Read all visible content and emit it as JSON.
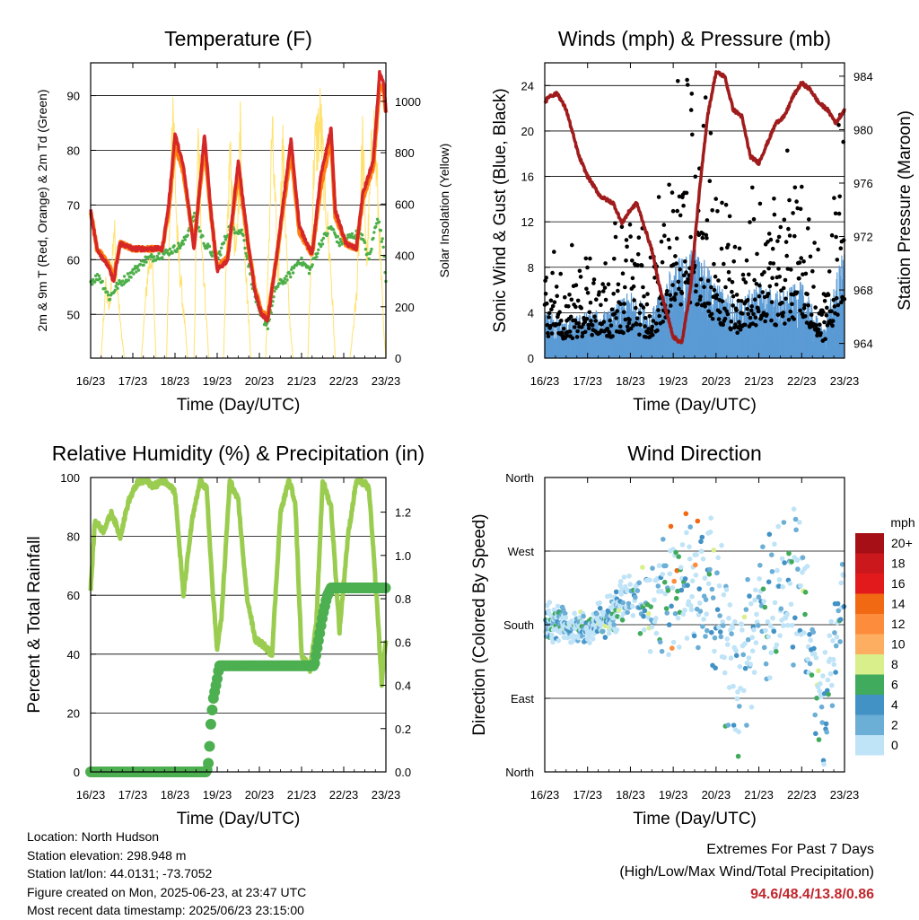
{
  "info": {
    "location": "Location: North Hudson",
    "elevation": "Station elevation: 298.948 m",
    "latlon": "Station lat/lon: 44.0131; -73.7052",
    "created": "Figure created on Mon, 2025-06-23, at 23:47 UTC",
    "recent": "Most recent data timestamp: 2025/06/23 23:15:00"
  },
  "extremes": {
    "title": "Extremes For Past 7 Days",
    "subtitle": "(High/Low/Max Wind/Total Precipitation)",
    "values": "94.6/48.4/13.8/0.86"
  },
  "colors": {
    "temp2m": "#d62728",
    "temp9m": "#ff7f0e",
    "dewpoint": "#4daf4a",
    "solar": "#ffe066",
    "wind": "#5b9bd5",
    "gust": "#000000",
    "pressure": "#a01c1c",
    "rh": "#9acd4f",
    "precip": "#4caf50"
  },
  "chart_data": [
    {
      "id": "temperature",
      "type": "line",
      "title": "Temperature (F)",
      "xlabel": "Time (Day/UTC)",
      "ylabel": "2m & 9m T (Red, Orange) & 2m Td (Green)",
      "ylabel_right": "Solar Insolation (Yellow)",
      "x_ticks": [
        "16/23",
        "17/23",
        "18/23",
        "19/23",
        "20/23",
        "21/23",
        "22/23",
        "23/23"
      ],
      "xlim": [
        0,
        7
      ],
      "ylim": [
        42,
        96
      ],
      "y_ticks": [
        50,
        60,
        70,
        80,
        90
      ],
      "ylim_right": [
        0,
        1150
      ],
      "y_ticks_right": [
        0,
        200,
        400,
        600,
        800,
        1000
      ],
      "grid": true,
      "series": [
        {
          "key": "t2m",
          "x": [
            0,
            0.15,
            0.4,
            0.55,
            0.7,
            1.0,
            1.4,
            1.7,
            1.85,
            2.0,
            2.2,
            2.45,
            2.7,
            2.85,
            3.0,
            3.25,
            3.5,
            3.75,
            3.9,
            4.05,
            4.2,
            4.4,
            4.75,
            4.95,
            5.25,
            5.45,
            5.7,
            5.8,
            6.05,
            6.3,
            6.45,
            6.7,
            6.85,
            6.95,
            7.0
          ],
          "y": [
            69,
            62,
            59,
            56,
            63,
            62,
            62,
            62,
            70,
            83,
            77,
            62,
            83,
            69,
            58,
            60,
            78,
            62,
            54,
            50,
            49,
            60,
            82,
            66,
            61,
            75,
            84,
            69,
            63,
            62,
            72,
            78,
            94,
            92,
            87
          ]
        },
        {
          "key": "t9m",
          "x": [
            0,
            0.15,
            0.4,
            0.55,
            0.7,
            1.0,
            1.4,
            1.7,
            1.85,
            2.0,
            2.2,
            2.45,
            2.7,
            2.85,
            3.0,
            3.25,
            3.5,
            3.75,
            3.9,
            4.05,
            4.2,
            4.4,
            4.75,
            4.95,
            5.25,
            5.45,
            5.7,
            5.8,
            6.05,
            6.3,
            6.45,
            6.7,
            6.85,
            6.95,
            7.0
          ],
          "y": [
            69,
            62,
            59.5,
            57,
            63,
            62,
            62,
            62,
            69,
            81,
            76,
            62.5,
            81,
            68.5,
            58.5,
            60.5,
            76,
            62,
            54.5,
            50.5,
            49.5,
            60,
            80,
            65,
            61,
            73,
            82,
            68,
            63,
            62,
            71,
            77,
            92,
            91,
            87
          ]
        },
        {
          "key": "td",
          "x": [
            0,
            0.2,
            0.45,
            0.6,
            0.9,
            1.3,
            1.7,
            2.0,
            2.2,
            2.45,
            2.7,
            3.0,
            3.3,
            3.6,
            3.85,
            4.0,
            4.2,
            4.4,
            4.7,
            4.95,
            5.2,
            5.45,
            5.7,
            5.9,
            6.1,
            6.4,
            6.6,
            6.8,
            6.95,
            7.0
          ],
          "y": [
            56,
            57,
            53,
            55,
            57,
            60,
            61,
            62,
            63,
            68,
            63,
            60,
            66,
            65,
            55,
            50,
            48,
            55,
            57,
            60,
            58,
            63,
            66,
            63,
            64,
            65,
            60,
            68,
            62,
            56
          ]
        },
        {
          "key": "solar",
          "axis": "right",
          "x": [
            0,
            0.25,
            0.35,
            0.45,
            0.55,
            0.7,
            0.8,
            1.2,
            1.35,
            1.45,
            1.55,
            1.8,
            1.95,
            2.05,
            2.3,
            2.45,
            2.55,
            2.65,
            2.8,
            2.95,
            3.15,
            3.3,
            3.45,
            3.55,
            3.7,
            3.8,
            3.95,
            4.15,
            4.3,
            4.45,
            4.55,
            4.7,
            4.8,
            4.95,
            5.15,
            5.3,
            5.45,
            5.55,
            5.7,
            5.8,
            5.95,
            6.15,
            6.3,
            6.45,
            6.55,
            6.7,
            6.8,
            6.95,
            7.0
          ],
          "y": [
            0,
            0,
            300,
            200,
            550,
            150,
            0,
            0,
            350,
            450,
            0,
            0,
            1100,
            500,
            0,
            0,
            900,
            450,
            0,
            0,
            0,
            850,
            400,
            950,
            300,
            0,
            0,
            0,
            950,
            300,
            900,
            200,
            0,
            0,
            0,
            850,
            1000,
            700,
            350,
            0,
            0,
            0,
            250,
            900,
            400,
            1000,
            700,
            100,
            0
          ]
        }
      ]
    },
    {
      "id": "winds",
      "type": "scatter",
      "title": "Winds (mph) & Pressure (mb)",
      "xlabel": "Time (Day/UTC)",
      "ylabel": "Sonic Wind & Gust (Blue, Black)",
      "ylabel_right": "Station Pressure (Maroon)",
      "x_ticks": [
        "16/23",
        "17/23",
        "18/23",
        "19/23",
        "20/23",
        "21/23",
        "22/23",
        "23/23"
      ],
      "xlim": [
        0,
        7
      ],
      "ylim": [
        0,
        26
      ],
      "y_ticks": [
        0,
        4,
        8,
        12,
        16,
        20,
        24
      ],
      "ylim_right": [
        962.9,
        985
      ],
      "y_ticks_right": [
        964,
        968,
        972,
        976,
        980,
        984
      ],
      "grid": true,
      "wind_envelope": {
        "x": [
          0,
          0.5,
          1,
          1.5,
          2,
          2.5,
          3,
          3.5,
          4,
          4.5,
          5,
          5.5,
          6,
          6.5,
          7
        ],
        "sustained": [
          2.5,
          2,
          2.5,
          2.5,
          3.5,
          2.5,
          5,
          6,
          4,
          3,
          4,
          3.5,
          4,
          1.5,
          6
        ],
        "gust": [
          4.5,
          4,
          5,
          4.5,
          6,
          4,
          11,
          12,
          8,
          5.5,
          7,
          7,
          9,
          3,
          12
        ]
      },
      "series": [
        {
          "key": "pressure",
          "axis": "right",
          "x": [
            0,
            0.1,
            0.3,
            0.5,
            0.8,
            1.0,
            1.3,
            1.6,
            1.8,
            2.0,
            2.15,
            2.3,
            2.5,
            2.7,
            3.0,
            3.2,
            3.4,
            3.6,
            3.8,
            4.0,
            4.2,
            4.4,
            4.6,
            4.8,
            5.0,
            5.2,
            5.4,
            5.6,
            5.8,
            6.0,
            6.2,
            6.4,
            6.6,
            6.8,
            6.9,
            7.0
          ],
          "y": [
            982,
            982.5,
            982.7,
            981.5,
            978,
            976.5,
            975,
            974.5,
            973,
            974,
            974.5,
            973,
            971,
            968,
            964.5,
            964,
            968,
            975,
            981,
            984.3,
            984,
            981.5,
            981,
            978,
            977.5,
            979,
            980.5,
            981,
            982.5,
            983.5,
            983,
            982,
            981.5,
            980.5,
            981,
            981.5
          ]
        }
      ]
    },
    {
      "id": "humidity",
      "type": "line",
      "title": "Relative Humidity (%) & Precipitation (in)",
      "xlabel": "Time (Day/UTC)",
      "ylabel": "Percent & Total Rainfall",
      "x_ticks": [
        "16/23",
        "17/23",
        "18/23",
        "19/23",
        "20/23",
        "21/23",
        "22/23",
        "23/23"
      ],
      "xlim": [
        0,
        7
      ],
      "ylim": [
        0,
        100
      ],
      "y_ticks": [
        0,
        20,
        40,
        60,
        80,
        100
      ],
      "ylim_right": [
        0,
        1.36
      ],
      "y_ticks_right": [
        0.0,
        0.2,
        0.4,
        0.6,
        0.8,
        1.0,
        1.2
      ],
      "grid": true,
      "series": [
        {
          "key": "rh",
          "x": [
            0,
            0.1,
            0.3,
            0.5,
            0.7,
            0.9,
            1.1,
            1.3,
            1.5,
            1.7,
            1.85,
            2.0,
            2.2,
            2.4,
            2.6,
            2.75,
            2.9,
            3.0,
            3.1,
            3.3,
            3.5,
            3.7,
            3.9,
            4.1,
            4.3,
            4.5,
            4.7,
            4.85,
            5.0,
            5.2,
            5.35,
            5.5,
            5.7,
            5.9,
            6.1,
            6.3,
            6.5,
            6.6,
            6.8,
            6.9,
            7.0
          ],
          "y": [
            62,
            85,
            82,
            88,
            80,
            92,
            98,
            99,
            97,
            99,
            98,
            95,
            60,
            85,
            99,
            96,
            60,
            42,
            52,
            99,
            92,
            60,
            45,
            43,
            40,
            88,
            99,
            92,
            40,
            35,
            50,
            99,
            90,
            48,
            80,
            99,
            98,
            96,
            55,
            30,
            45
          ]
        },
        {
          "key": "precip",
          "axis": "right",
          "x": [
            0,
            2.5,
            2.75,
            2.8,
            2.85,
            2.9,
            3.0,
            3.05,
            3.1,
            5.3,
            5.35,
            5.5,
            5.6,
            5.7,
            5.8,
            7.0
          ],
          "y": [
            0,
            0,
            0,
            0.05,
            0.22,
            0.33,
            0.43,
            0.49,
            0.49,
            0.49,
            0.55,
            0.72,
            0.81,
            0.85,
            0.85,
            0.85
          ]
        }
      ]
    },
    {
      "id": "direction",
      "type": "scatter",
      "title": "Wind Direction",
      "xlabel": "Time (Day/UTC)",
      "ylabel": "Direction (Colored By Speed)",
      "x_ticks": [
        "16/23",
        "17/23",
        "18/23",
        "19/23",
        "20/23",
        "21/23",
        "22/23",
        "23/23"
      ],
      "xlim": [
        0,
        7
      ],
      "ylim": [
        0,
        360
      ],
      "y_ticks": [
        "North",
        "East",
        "South",
        "West",
        "North"
      ],
      "grid": true,
      "legend_title": "mph",
      "legend_labels": [
        "20+",
        "18",
        "16",
        "14",
        "12",
        "10",
        "8",
        "6",
        "4",
        "2",
        "0"
      ],
      "legend_colors": [
        "#a50f15",
        "#cb181d",
        "#e31a1c",
        "#f16913",
        "#fd8d3c",
        "#fdae61",
        "#d9ef8b",
        "#41ab5d",
        "#4292c6",
        "#6baed6",
        "#bfe3f7"
      ],
      "legend_placement": "right",
      "direction_profile": {
        "x": [
          0,
          0.5,
          1,
          1.5,
          2,
          2.5,
          3,
          3.5,
          4,
          4.5,
          5,
          5.5,
          6,
          6.5,
          7
        ],
        "center": [
          185,
          180,
          175,
          190,
          215,
          200,
          220,
          235,
          210,
          90,
          200,
          220,
          230,
          70,
          220
        ],
        "spread": [
          25,
          25,
          20,
          30,
          40,
          60,
          120,
          90,
          150,
          90,
          100,
          120,
          100,
          80,
          60
        ]
      }
    }
  ]
}
